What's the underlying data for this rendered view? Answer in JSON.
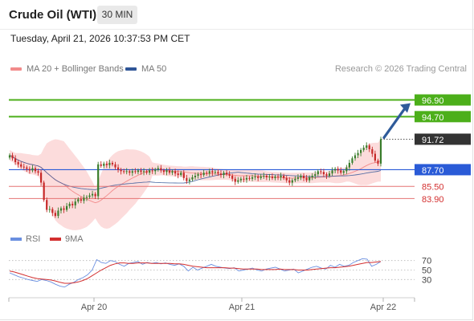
{
  "header": {
    "title": "Crude Oil (WTI)",
    "timeframe": "30 MIN",
    "timestamp": "Tuesday, April 21, 2026 10:37:53 PM CET"
  },
  "legend": {
    "ma20_bb": "MA 20 + Bollinger Bands",
    "ma50": "MA 50",
    "ma20_color": "#f28b8b",
    "ma50_color": "#2f5597"
  },
  "credit": "Research © 2026 Trading Central",
  "colors": {
    "up_candle": "#3a7d2c",
    "down_candle": "#c62828",
    "resistance": "#4caf1a",
    "pivot": "#2a5bd7",
    "support": "#e57373",
    "last_price_bg": "#333333",
    "bollinger_fill": "#fbd6d6",
    "arrow": "#2f5b9a",
    "rsi_line": "#6a8fe0",
    "rsi_ma_line": "#d32f2f"
  },
  "chart_data": [
    {
      "type": "candlestick",
      "title": "",
      "ylim": [
        81.5,
        99.5
      ],
      "levels": [
        {
          "label": "96.90",
          "value": 96.9,
          "kind": "resistance"
        },
        {
          "label": "94.70",
          "value": 94.7,
          "kind": "resistance"
        },
        {
          "label": "91.72",
          "value": 91.72,
          "kind": "last"
        },
        {
          "label": "87.70",
          "value": 87.7,
          "kind": "pivot"
        },
        {
          "label": "85.50",
          "value": 85.5,
          "kind": "support"
        },
        {
          "label": "83.90",
          "value": 83.9,
          "kind": "support"
        }
      ],
      "x_ticks": [
        "Apr 20",
        "Apr 21",
        "Apr 22"
      ],
      "series_close": [
        89.6,
        89.2,
        88.7,
        88.4,
        88.1,
        88.0,
        87.8,
        87.6,
        87.9,
        87.5,
        87.3,
        86.0,
        83.7,
        82.4,
        82.5,
        82.0,
        81.6,
        82.3,
        82.6,
        82.4,
        82.9,
        83.2,
        83.0,
        83.5,
        83.8,
        83.6,
        84.0,
        84.1,
        84.3,
        84.5,
        84.2,
        88.4,
        88.2,
        88.5,
        88.3,
        88.6,
        88.4,
        88.0,
        87.7,
        87.5,
        87.4,
        87.5,
        87.3,
        87.5,
        87.4,
        87.6,
        87.4,
        87.5,
        87.3,
        87.6,
        87.5,
        87.7,
        87.9,
        87.6,
        87.4,
        87.6,
        87.3,
        87.5,
        87.2,
        87.0,
        87.3,
        86.6,
        86.2,
        86.4,
        86.7,
        86.9,
        87.1,
        87.0,
        87.3,
        87.2,
        87.5,
        87.3,
        87.4,
        87.2,
        87.0,
        87.3,
        87.1,
        86.9,
        86.5,
        86.1,
        86.3,
        86.5,
        86.4,
        86.6,
        86.5,
        86.7,
        86.8,
        86.6,
        86.8,
        86.9,
        86.7,
        86.8,
        86.6,
        86.8,
        86.7,
        86.9,
        86.6,
        86.3,
        86.0,
        86.3,
        86.5,
        86.7,
        86.9,
        86.6,
        86.3,
        86.7,
        86.9,
        87.1,
        87.5,
        87.4,
        87.1,
        86.9,
        87.2,
        87.6,
        87.8,
        87.6,
        87.3,
        87.5,
        88.0,
        88.6,
        89.2,
        89.6,
        89.9,
        90.3,
        90.6,
        90.9,
        90.4,
        89.8,
        88.9,
        88.5,
        91.72
      ]
    },
    {
      "type": "line",
      "title": "",
      "series": [
        {
          "name": "RSI",
          "values": [
            44,
            40,
            36,
            33,
            30,
            28,
            26,
            30,
            28,
            25,
            20,
            16,
            14,
            20,
            24,
            30,
            34,
            40,
            50,
            72,
            66,
            64,
            70,
            68,
            62,
            58,
            64,
            66,
            68,
            62,
            66,
            64,
            66,
            63,
            65,
            62,
            60,
            63,
            58,
            48,
            56,
            50,
            54,
            58,
            62,
            58,
            56,
            54,
            53,
            55,
            48,
            50,
            52,
            54,
            50,
            48,
            52,
            54,
            56,
            52,
            48,
            50,
            52,
            44,
            48,
            52,
            56,
            58,
            54,
            52,
            60,
            56,
            62,
            58,
            60,
            66,
            70,
            74,
            73,
            58,
            62,
            68
          ]
        },
        {
          "name": "9MA",
          "values": [
            48,
            46,
            43,
            40,
            37,
            34,
            32,
            31,
            30,
            29,
            27,
            24,
            22,
            22,
            23,
            25,
            28,
            32,
            38,
            44,
            50,
            55,
            60,
            63,
            65,
            65,
            64,
            64,
            65,
            65,
            65,
            64,
            64,
            64,
            64,
            64,
            63,
            63,
            62,
            60,
            58,
            57,
            56,
            55,
            55,
            55,
            55,
            55,
            54,
            54,
            53,
            52,
            52,
            52,
            52,
            51,
            51,
            51,
            51,
            52,
            51,
            51,
            51,
            50,
            50,
            50,
            51,
            52,
            53,
            54,
            55,
            55,
            56,
            57,
            58,
            60,
            62,
            64,
            66,
            66,
            67,
            68
          ]
        }
      ],
      "y_ticks": [
        70,
        50,
        30
      ],
      "ylim": [
        0,
        100
      ]
    }
  ]
}
